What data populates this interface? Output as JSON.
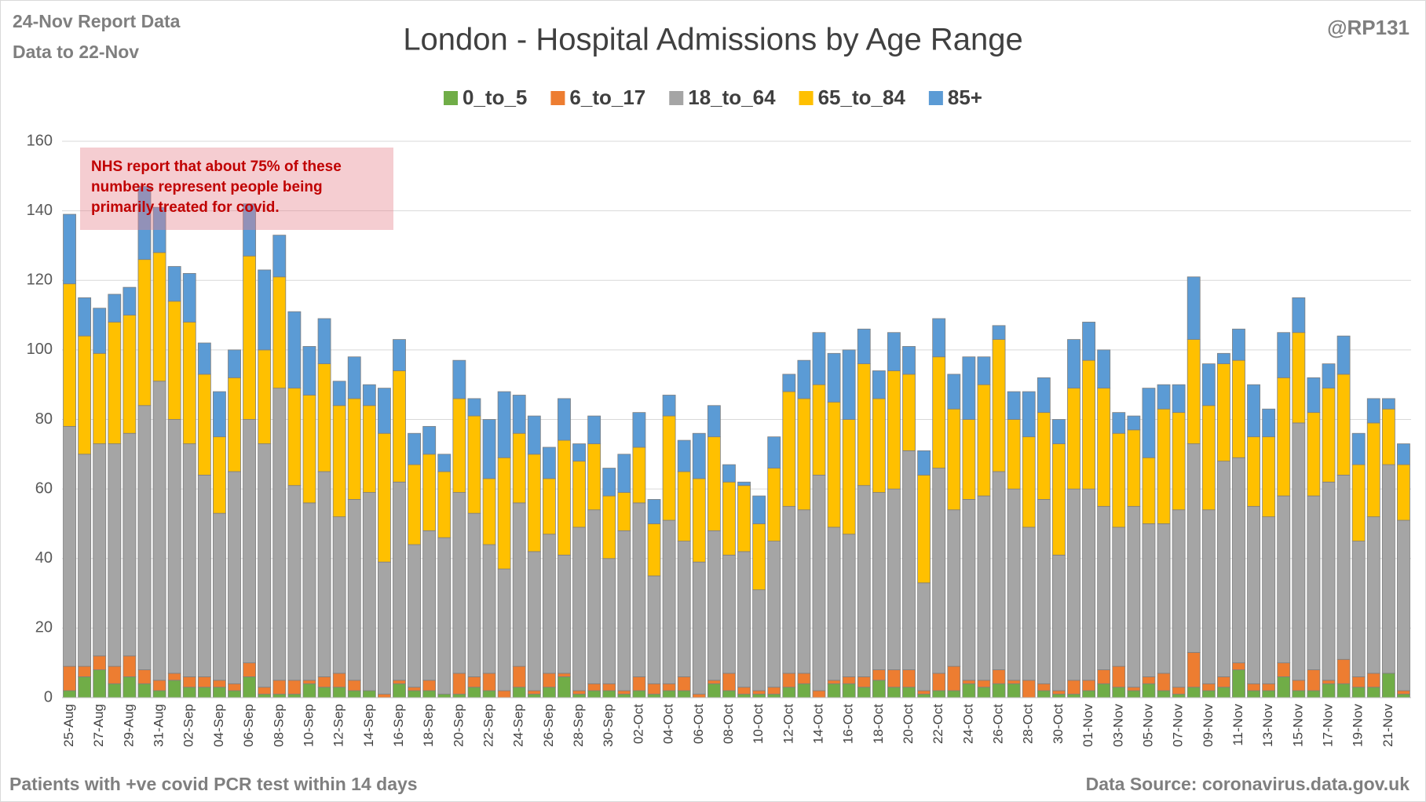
{
  "chart_data": {
    "type": "stacked-bar",
    "title": "London - Hospital Admissions by Age Range",
    "report_date": "24-Nov Report Data",
    "data_to": "Data to 22-Nov",
    "author": "@RP131",
    "annotation": "NHS report that about 75% of these numbers represent people being primarily treated for covid.",
    "footnote": "Patients with  +ve covid PCR test within 14 days",
    "source": "Data Source: coronavirus.data.gov.uk",
    "legend_position": "top",
    "grid": true,
    "ylim": [
      0,
      160
    ],
    "yticks": [
      0,
      20,
      40,
      60,
      80,
      100,
      120,
      140,
      160
    ],
    "categories": [
      "25-Aug",
      null,
      "27-Aug",
      null,
      "29-Aug",
      null,
      "31-Aug",
      null,
      "02-Sep",
      null,
      "04-Sep",
      null,
      "06-Sep",
      null,
      "08-Sep",
      null,
      "10-Sep",
      null,
      "12-Sep",
      null,
      "14-Sep",
      null,
      "16-Sep",
      null,
      "18-Sep",
      null,
      "20-Sep",
      null,
      "22-Sep",
      null,
      "24-Sep",
      null,
      "26-Sep",
      null,
      "28-Sep",
      null,
      "30-Sep",
      null,
      "02-Oct",
      null,
      "04-Oct",
      null,
      "06-Oct",
      null,
      "08-Oct",
      null,
      "10-Oct",
      null,
      "12-Oct",
      null,
      "14-Oct",
      null,
      "16-Oct",
      null,
      "18-Oct",
      null,
      "20-Oct",
      null,
      "22-Oct",
      null,
      "24-Oct",
      null,
      "26-Oct",
      null,
      "28-Oct",
      null,
      "30-Oct",
      null,
      "01-Nov",
      null,
      "03-Nov",
      null,
      "05-Nov",
      null,
      "07-Nov",
      null,
      "09-Nov",
      null,
      "11-Nov",
      null,
      "13-Nov",
      null,
      "15-Nov",
      null,
      "17-Nov",
      null,
      "19-Nov",
      null,
      "21-Nov",
      null
    ],
    "series": [
      {
        "name": "0_to_5",
        "color": "#70ad47",
        "values": [
          2,
          6,
          8,
          4,
          6,
          4,
          2,
          5,
          3,
          3,
          3,
          2,
          6,
          1,
          1,
          1,
          4,
          3,
          3,
          2,
          2,
          0,
          4,
          2,
          2,
          1,
          1,
          3,
          2,
          0,
          3,
          1,
          3,
          6,
          1,
          2,
          2,
          1,
          2,
          1,
          2,
          2,
          0,
          4,
          2,
          1,
          1,
          1,
          3,
          4,
          0,
          4,
          4,
          3,
          5,
          3,
          3,
          1,
          2,
          2,
          4,
          3,
          4,
          4,
          0,
          2,
          1,
          1,
          2,
          4,
          3,
          2,
          4,
          2,
          1,
          3,
          2,
          3,
          8,
          2,
          2,
          6,
          2,
          2,
          4,
          4,
          3,
          3,
          7,
          1
        ]
      },
      {
        "name": "6_to_17",
        "color": "#ed7d31",
        "values": [
          7,
          3,
          4,
          5,
          6,
          4,
          3,
          2,
          3,
          3,
          2,
          2,
          4,
          2,
          4,
          4,
          1,
          3,
          4,
          3,
          0,
          1,
          1,
          1,
          3,
          0,
          6,
          3,
          5,
          2,
          6,
          1,
          4,
          1,
          1,
          2,
          2,
          1,
          4,
          3,
          2,
          4,
          1,
          1,
          5,
          2,
          1,
          2,
          4,
          3,
          2,
          1,
          2,
          3,
          3,
          5,
          5,
          1,
          5,
          7,
          1,
          2,
          4,
          1,
          5,
          2,
          1,
          4,
          3,
          4,
          6,
          1,
          2,
          5,
          2,
          10,
          2,
          3,
          2,
          2,
          2,
          4,
          3,
          6,
          1,
          7,
          3,
          4,
          0,
          1
        ]
      },
      {
        "name": "18_to_64",
        "color": "#a5a5a5",
        "values": [
          69,
          61,
          61,
          64,
          64,
          76,
          86,
          73,
          67,
          58,
          48,
          61,
          70,
          70,
          84,
          56,
          51,
          59,
          45,
          52,
          57,
          38,
          57,
          41,
          43,
          45,
          52,
          47,
          37,
          35,
          47,
          40,
          40,
          34,
          47,
          50,
          36,
          46,
          50,
          31,
          47,
          39,
          38,
          43,
          34,
          39,
          29,
          42,
          48,
          47,
          62,
          44,
          41,
          55,
          51,
          52,
          63,
          31,
          59,
          45,
          52,
          53,
          57,
          55,
          44,
          53,
          39,
          55,
          55,
          47,
          40,
          52,
          44,
          43,
          51,
          60,
          50,
          62,
          59,
          51,
          48,
          48,
          74,
          50,
          57,
          53,
          39,
          45,
          60,
          49
        ]
      },
      {
        "name": "65_to_84",
        "color": "#ffc000",
        "values": [
          41,
          34,
          26,
          35,
          34,
          42,
          37,
          34,
          35,
          29,
          22,
          27,
          47,
          27,
          32,
          28,
          31,
          31,
          32,
          29,
          25,
          37,
          32,
          23,
          22,
          19,
          27,
          28,
          19,
          32,
          20,
          28,
          16,
          33,
          19,
          19,
          18,
          11,
          16,
          15,
          30,
          20,
          24,
          27,
          21,
          19,
          19,
          21,
          33,
          32,
          26,
          36,
          33,
          35,
          27,
          34,
          22,
          31,
          32,
          29,
          23,
          32,
          38,
          20,
          26,
          25,
          32,
          29,
          37,
          34,
          27,
          22,
          19,
          33,
          28,
          30,
          30,
          28,
          28,
          20,
          23,
          34,
          26,
          24,
          27,
          29,
          22,
          27,
          16,
          16
        ]
      },
      {
        "name": "85+",
        "color": "#5b9bd5",
        "values": [
          20,
          11,
          13,
          8,
          8,
          21,
          13,
          10,
          14,
          9,
          13,
          8,
          15,
          23,
          12,
          22,
          14,
          13,
          7,
          12,
          6,
          13,
          9,
          9,
          8,
          5,
          11,
          5,
          17,
          19,
          11,
          11,
          9,
          12,
          5,
          8,
          8,
          11,
          10,
          7,
          6,
          9,
          13,
          9,
          5,
          1,
          8,
          9,
          5,
          11,
          15,
          14,
          20,
          10,
          8,
          11,
          8,
          7,
          11,
          10,
          18,
          8,
          4,
          8,
          13,
          10,
          7,
          14,
          11,
          11,
          6,
          4,
          20,
          7,
          8,
          18,
          12,
          3,
          9,
          15,
          8,
          13,
          10,
          10,
          7,
          11,
          9,
          7,
          3,
          6
        ]
      }
    ]
  }
}
